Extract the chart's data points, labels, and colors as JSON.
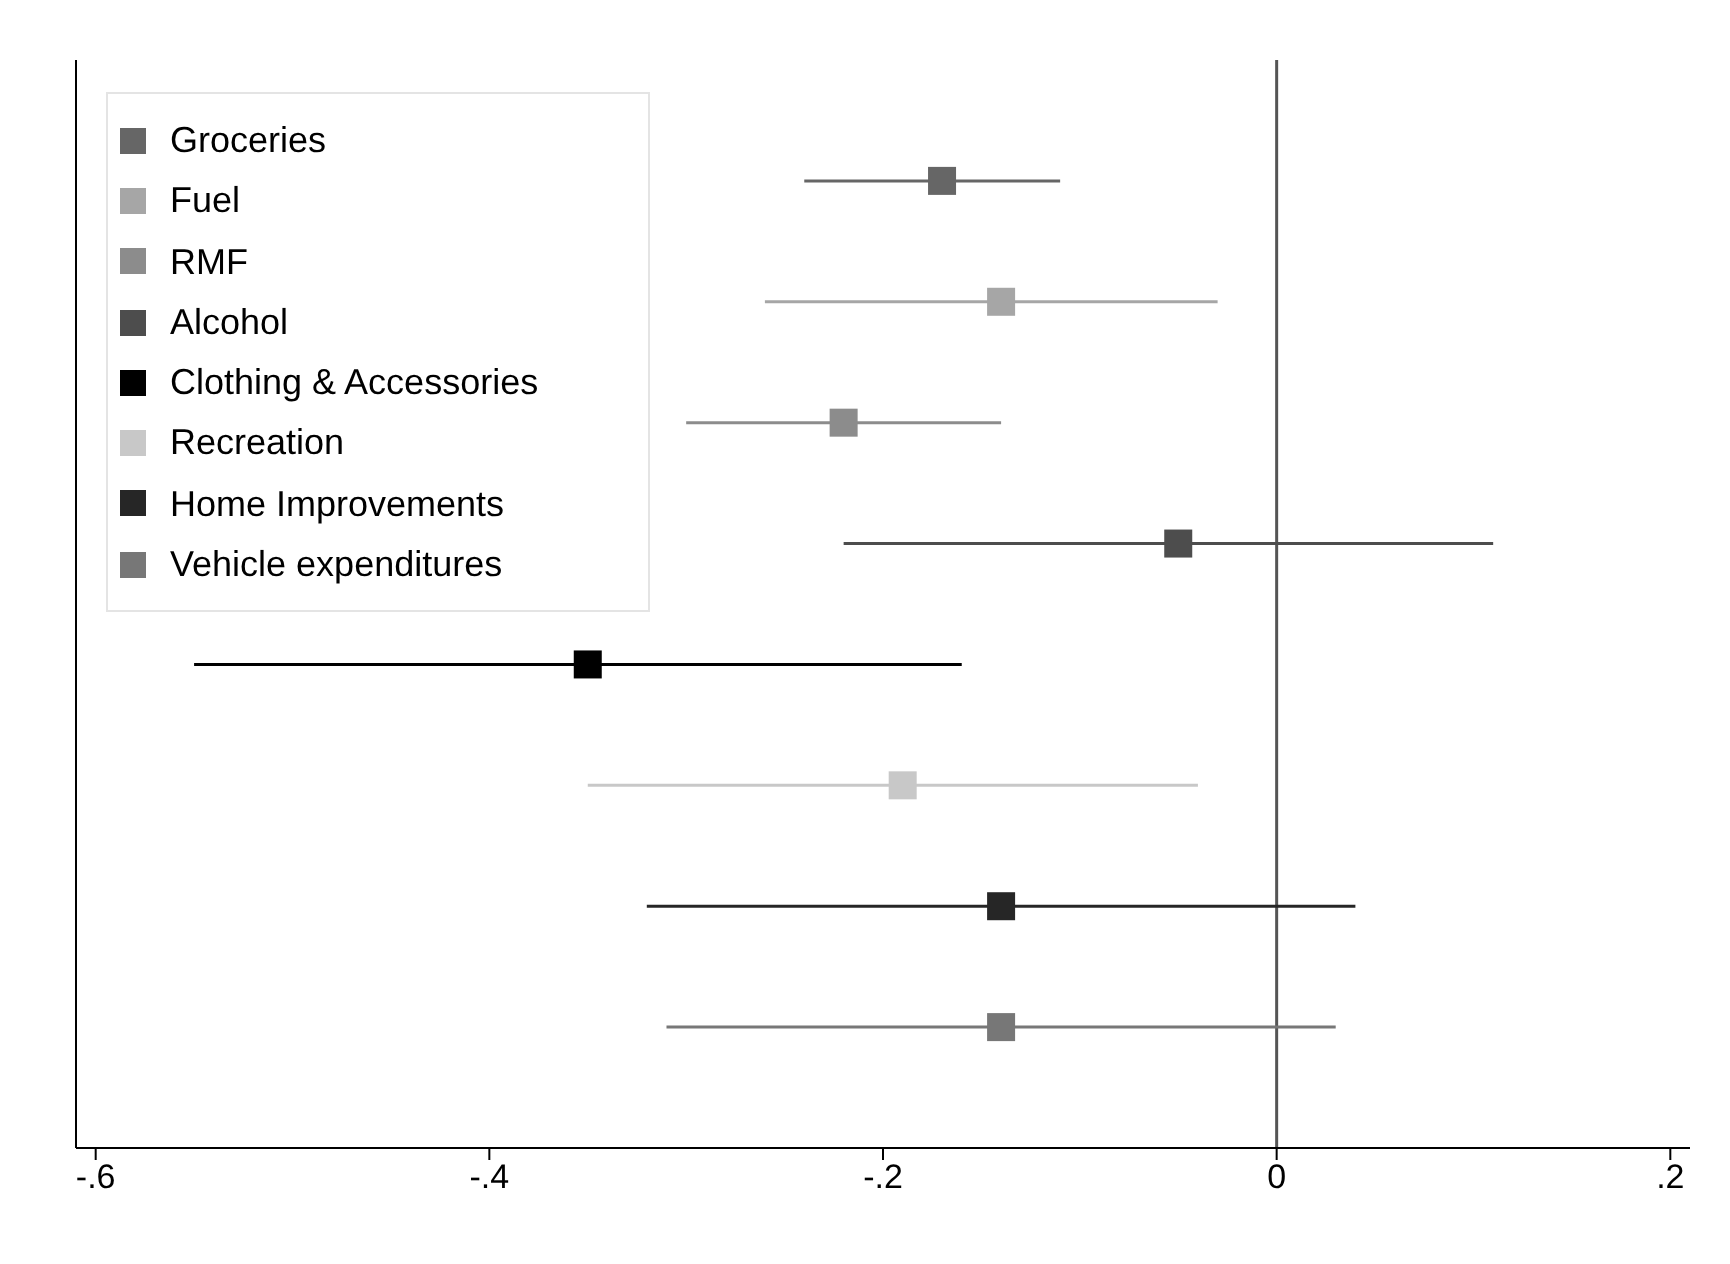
{
  "chart_data": {
    "type": "scatter",
    "orientation": "horizontal",
    "categories": [
      null,
      null,
      null,
      null,
      null,
      null,
      null,
      null
    ],
    "series": [
      {
        "name": "Groceries",
        "color": "#666666",
        "values": [
          -0.17,
          null,
          null,
          null,
          null,
          null,
          null,
          null
        ],
        "errors": [
          [
            -0.24,
            -0.11
          ],
          null,
          null,
          null,
          null,
          null,
          null,
          null
        ]
      },
      {
        "name": "Fuel",
        "color": "#a6a6a6",
        "values": [
          null,
          -0.14,
          null,
          null,
          null,
          null,
          null,
          null
        ],
        "errors": [
          null,
          [
            -0.26,
            -0.03
          ],
          null,
          null,
          null,
          null,
          null,
          null
        ]
      },
      {
        "name": "RMF",
        "color": "#8c8c8c",
        "values": [
          null,
          null,
          -0.22,
          null,
          null,
          null,
          null,
          null
        ],
        "errors": [
          null,
          null,
          [
            -0.3,
            -0.14
          ],
          null,
          null,
          null,
          null,
          null
        ]
      },
      {
        "name": "Alcohol",
        "color": "#4d4d4d",
        "values": [
          null,
          null,
          null,
          -0.05,
          null,
          null,
          null,
          null
        ],
        "errors": [
          null,
          null,
          null,
          [
            -0.22,
            0.11
          ],
          null,
          null,
          null,
          null
        ]
      },
      {
        "name": "Clothing & Accessories",
        "color": "#000000",
        "values": [
          null,
          null,
          null,
          null,
          -0.35,
          null,
          null,
          null
        ],
        "errors": [
          null,
          null,
          null,
          null,
          [
            -0.55,
            -0.16
          ],
          null,
          null,
          null
        ]
      },
      {
        "name": "Recreation",
        "color": "#c8c8c8",
        "values": [
          null,
          null,
          null,
          null,
          null,
          -0.19,
          null,
          null
        ],
        "errors": [
          null,
          null,
          null,
          null,
          null,
          [
            -0.35,
            -0.04
          ],
          null,
          null
        ]
      },
      {
        "name": "Home Improvements",
        "color": "#262626",
        "values": [
          null,
          null,
          null,
          null,
          null,
          null,
          -0.14,
          null
        ],
        "errors": [
          null,
          null,
          null,
          null,
          null,
          null,
          [
            -0.32,
            0.04
          ],
          null
        ]
      },
      {
        "name": "Vehicle expenditures",
        "color": "#777777",
        "values": [
          null,
          null,
          null,
          null,
          null,
          null,
          null,
          -0.14
        ],
        "errors": [
          null,
          null,
          null,
          null,
          null,
          null,
          null,
          [
            -0.31,
            0.03
          ]
        ]
      }
    ],
    "xlim": [
      -0.61,
      0.21
    ],
    "xticks": [
      {
        "value": -0.6,
        "label": "-.6"
      },
      {
        "value": -0.4,
        "label": "-.4"
      },
      {
        "value": -0.2,
        "label": "-.2"
      },
      {
        "value": 0,
        "label": "0"
      },
      {
        "value": 0.2,
        "label": ".2"
      }
    ],
    "ref_lines": [
      {
        "axis": "x",
        "value": 0,
        "color": "#555555"
      }
    ],
    "marker": "square",
    "legend": "top left",
    "tick_labels": "x",
    "grid": false
  }
}
